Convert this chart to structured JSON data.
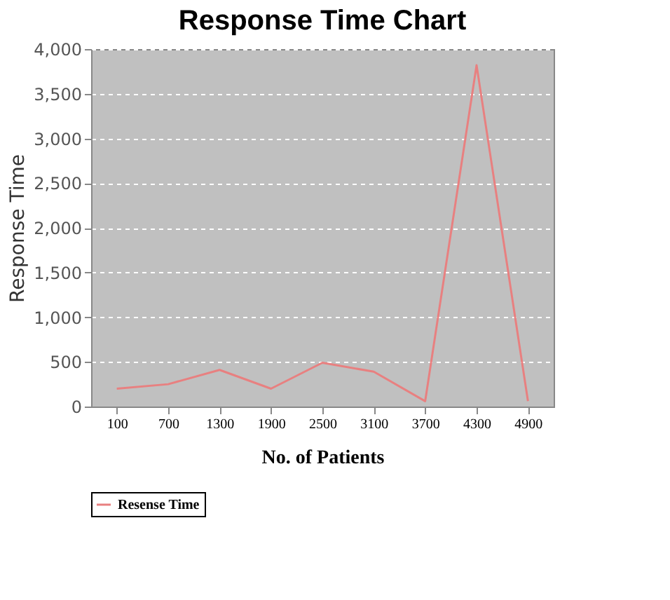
{
  "chart_data": {
    "type": "line",
    "title": "Response Time Chart",
    "xlabel": "No. of Patients",
    "ylabel": "Response Time",
    "categories": [
      "100",
      "700",
      "1300",
      "1900",
      "2500",
      "3100",
      "3700",
      "4300",
      "4900"
    ],
    "series": [
      {
        "name": "Resense Time",
        "color": "#e88080",
        "values": [
          200,
          250,
          410,
          200,
          490,
          390,
          60,
          3820,
          60
        ]
      }
    ],
    "ylim": [
      0,
      4000
    ],
    "yticks": [
      0,
      500,
      {
        "value": 1000,
        "label": "1,000"
      },
      {
        "value": 1500,
        "label": "1,500"
      },
      {
        "value": 2000,
        "label": "2,000"
      },
      {
        "value": 2500,
        "label": "2,500"
      },
      {
        "value": 3000,
        "label": "3,000"
      },
      {
        "value": 3500,
        "label": "3,500"
      },
      {
        "value": 4000,
        "label": "4,000"
      }
    ],
    "grid": "y",
    "legend": "bottom",
    "marker": "none",
    "line_style": "solid"
  }
}
